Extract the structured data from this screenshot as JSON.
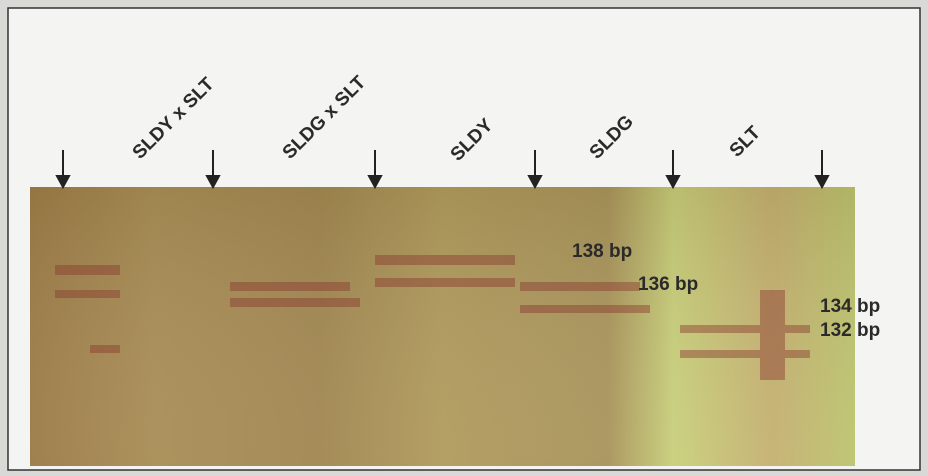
{
  "lanes": [
    "SLDY x SLT",
    "SLDG x SLT",
    "SLDY",
    "SLDG",
    "SLT"
  ],
  "band_labels": [
    "138 bp",
    "136 bp",
    "134 bp",
    "132 bp"
  ]
}
